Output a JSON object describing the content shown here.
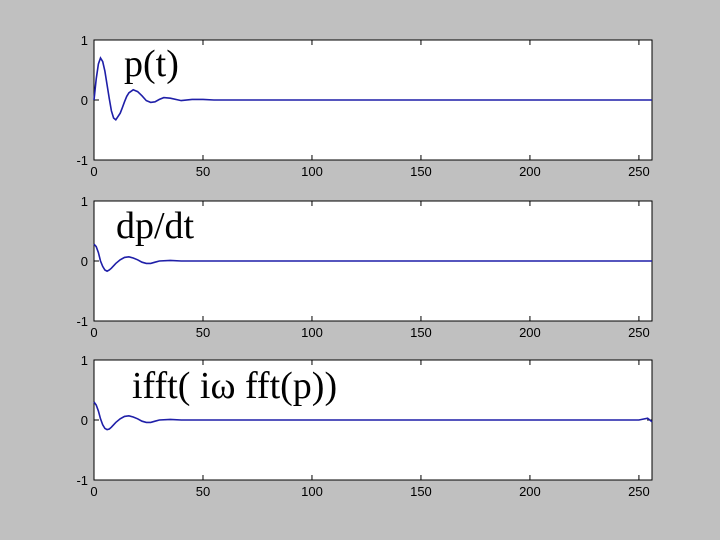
{
  "chart_data": [
    {
      "type": "line",
      "title": "p(t)",
      "xlim": [
        0,
        256
      ],
      "ylim": [
        -1,
        1
      ],
      "xticks": [
        0,
        50,
        100,
        150,
        200,
        250
      ],
      "yticks": [
        -1,
        0,
        1
      ],
      "grid": false,
      "series": [
        {
          "color": "#1f1fa8",
          "x": [
            0,
            1,
            2,
            3,
            4,
            5,
            6,
            7,
            8,
            9,
            10,
            12,
            13,
            14,
            15,
            16,
            18,
            20,
            22,
            24,
            26,
            28,
            30,
            32,
            35,
            40,
            45,
            50,
            55,
            60,
            80,
            120,
            160,
            200,
            256
          ],
          "y": [
            0.0,
            0.35,
            0.6,
            0.7,
            0.64,
            0.48,
            0.25,
            0.02,
            -0.18,
            -0.3,
            -0.33,
            -0.22,
            -0.13,
            -0.03,
            0.06,
            0.12,
            0.17,
            0.14,
            0.07,
            -0.01,
            -0.04,
            -0.03,
            0.01,
            0.04,
            0.03,
            -0.01,
            0.01,
            0.01,
            0.0,
            0.0,
            0.0,
            0.0,
            0.0,
            0.0,
            0.0
          ]
        }
      ]
    },
    {
      "type": "line",
      "title": "dp/dt",
      "xlim": [
        0,
        256
      ],
      "ylim": [
        -1,
        1
      ],
      "xticks": [
        0,
        50,
        100,
        150,
        200,
        250
      ],
      "yticks": [
        -1,
        0,
        1
      ],
      "grid": false,
      "series": [
        {
          "color": "#1f1fa8",
          "x": [
            0,
            1,
            2,
            3,
            4,
            5,
            6,
            7,
            8,
            10,
            12,
            14,
            16,
            18,
            20,
            22,
            24,
            26,
            28,
            30,
            35,
            40,
            50,
            60,
            80,
            120,
            160,
            200,
            256
          ],
          "y": [
            0.28,
            0.24,
            0.14,
            0.0,
            -0.09,
            -0.15,
            -0.17,
            -0.15,
            -0.12,
            -0.04,
            0.02,
            0.06,
            0.07,
            0.05,
            0.02,
            -0.02,
            -0.04,
            -0.04,
            -0.02,
            0.0,
            0.01,
            0.0,
            0.0,
            0.0,
            0.0,
            0.0,
            0.0,
            0.0,
            0.0
          ]
        }
      ]
    },
    {
      "type": "line",
      "title": "ifft( iω fft(p))",
      "xlim": [
        0,
        256
      ],
      "ylim": [
        -1,
        1
      ],
      "xticks": [
        0,
        50,
        100,
        150,
        200,
        250
      ],
      "yticks": [
        -1,
        0,
        1
      ],
      "grid": false,
      "series": [
        {
          "color": "#1f1fa8",
          "x": [
            0,
            1,
            2,
            3,
            4,
            5,
            6,
            7,
            8,
            10,
            12,
            14,
            16,
            18,
            20,
            22,
            24,
            26,
            28,
            30,
            35,
            40,
            50,
            60,
            70,
            80,
            120,
            160,
            200,
            250,
            254,
            256
          ],
          "y": [
            0.3,
            0.25,
            0.15,
            0.02,
            -0.08,
            -0.14,
            -0.16,
            -0.15,
            -0.12,
            -0.04,
            0.02,
            0.06,
            0.07,
            0.05,
            0.02,
            -0.02,
            -0.04,
            -0.04,
            -0.02,
            0.0,
            0.01,
            0.0,
            0.0,
            0.0,
            0.0,
            0.0,
            0.0,
            0.0,
            0.0,
            0.0,
            0.03,
            -0.03
          ]
        }
      ]
    }
  ]
}
